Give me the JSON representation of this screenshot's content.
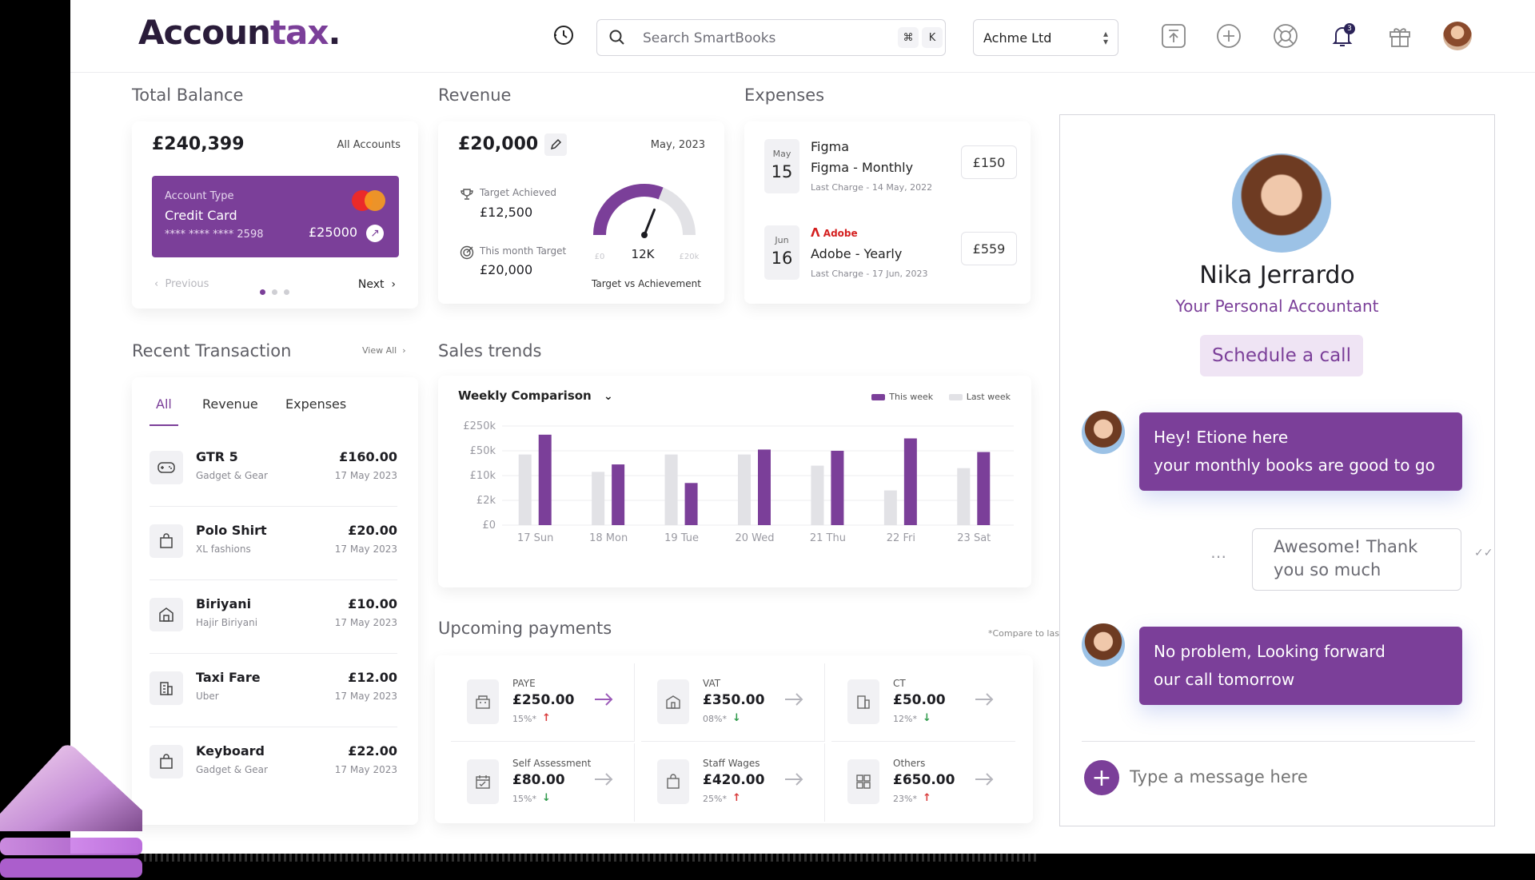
{
  "brand": {
    "logo_a": "Accoun",
    "logo_b": "tax",
    "logo_dot": "."
  },
  "header": {
    "search_placeholder": "Search SmartBooks",
    "kbd_1": "⌘",
    "kbd_2": "K",
    "company": "Achme Ltd",
    "notification_count": "3",
    "icons": [
      "history-icon",
      "search-icon",
      "upload-icon",
      "add-icon",
      "help-icon",
      "bell-icon",
      "gift-icon",
      "user-avatar"
    ]
  },
  "total_balance": {
    "title": "Total Balance",
    "amount": "£240,399",
    "accounts": "All Accounts",
    "card": {
      "type_label": "Account Type",
      "type": "Credit Card",
      "number": "**** **** **** 2598",
      "balance": "£25000"
    },
    "prev": "Previous",
    "next": "Next"
  },
  "revenue": {
    "title": "Revenue",
    "amount": "£20,000",
    "date": "May, 2023",
    "target_achieved_label": "Target Achieved",
    "target_achieved": "£12,500",
    "month_target_label": "This month Target",
    "month_target": "£20,000",
    "gauge_min": "£0",
    "gauge_value": "12K",
    "gauge_max": "£20k",
    "gauge_fraction": 0.62,
    "gauge_caption": "Target vs Achievement"
  },
  "expenses": {
    "title": "Expenses",
    "items": [
      {
        "month": "May",
        "day": "15",
        "vendor": "Figma",
        "plan": "Figma - Monthly",
        "last": "Last Charge - 14 May, 2022",
        "price": "£150"
      },
      {
        "month": "Jun",
        "day": "16",
        "vendor": "Adobe",
        "plan": "Adobe - Yearly",
        "last": "Last Charge - 17 Jun, 2023",
        "price": "£559"
      }
    ]
  },
  "recent": {
    "title": "Recent Transaction",
    "view_all": "View All",
    "tabs": [
      "All",
      "Revenue",
      "Expenses"
    ],
    "rows": [
      {
        "name": "GTR 5",
        "sub": "Gadget & Gear",
        "amount": "£160.00",
        "date": "17 May 2023"
      },
      {
        "name": "Polo Shirt",
        "sub": "XL fashions",
        "amount": "£20.00",
        "date": "17 May 2023"
      },
      {
        "name": "Biriyani",
        "sub": "Hajir Biriyani",
        "amount": "£10.00",
        "date": "17 May 2023"
      },
      {
        "name": "Taxi Fare",
        "sub": "Uber",
        "amount": "£12.00",
        "date": "17 May 2023"
      },
      {
        "name": "Keyboard",
        "sub": "Gadget & Gear",
        "amount": "£22.00",
        "date": "17 May 2023"
      }
    ]
  },
  "sales": {
    "title": "Sales trends",
    "selector": "Weekly Comparison",
    "legend_this": "This week",
    "legend_last": "Last week"
  },
  "chart_data": {
    "type": "bar",
    "categories": [
      "17 Sun",
      "18 Mon",
      "19 Tue",
      "20 Wed",
      "21 Thu",
      "22 Fri",
      "23 Sat"
    ],
    "ytick_labels": [
      "£0",
      "£2k",
      "£10k",
      "£50k",
      "£250k"
    ],
    "series": [
      {
        "name": "Last week",
        "values": [
          2.85,
          2.15,
          2.85,
          2.85,
          2.4,
          1.4,
          2.3
        ],
        "color": "#e2e2e6"
      },
      {
        "name": "This week",
        "values": [
          3.65,
          2.45,
          1.7,
          3.05,
          3.0,
          3.5,
          2.95
        ],
        "color": "#7b3f99"
      }
    ],
    "ylim": [
      0,
      4
    ],
    "grid": true,
    "legend": "top-right",
    "xlabel": "",
    "ylabel": "",
    "title": ""
  },
  "upcoming": {
    "title": "Upcoming payments",
    "note": "*Compare to last month",
    "items": [
      {
        "label": "PAYE",
        "value": "£250.00",
        "pct": "15%*",
        "dir": "up"
      },
      {
        "label": "VAT",
        "value": "£350.00",
        "pct": "08%*",
        "dir": "down"
      },
      {
        "label": "CT",
        "value": "£50.00",
        "pct": "12%*",
        "dir": "down"
      },
      {
        "label": "Self Assessment",
        "value": "£80.00",
        "pct": "15%*",
        "dir": "down"
      },
      {
        "label": "Staff Wages",
        "value": "£420.00",
        "pct": "25%*",
        "dir": "up"
      },
      {
        "label": "Others",
        "value": "£650.00",
        "pct": "23%*",
        "dir": "up"
      }
    ]
  },
  "chat": {
    "name": "Nika Jerrardo",
    "role": "Your Personal Accountant",
    "schedule": "Schedule a call",
    "msg1_line1": "Hey! Etione here",
    "msg1_line2": "your monthly books are good to go",
    "msg2_line1": "Awesome! Thank",
    "msg2_line2": "you so much",
    "msg3_line1": "No problem, Looking forward",
    "msg3_line2": "our call tomorrow",
    "input_placeholder": "Type a message here"
  },
  "colors": {
    "accent": "#7b3f99",
    "up": "#d93b3b",
    "down": "#2f9a4b"
  }
}
